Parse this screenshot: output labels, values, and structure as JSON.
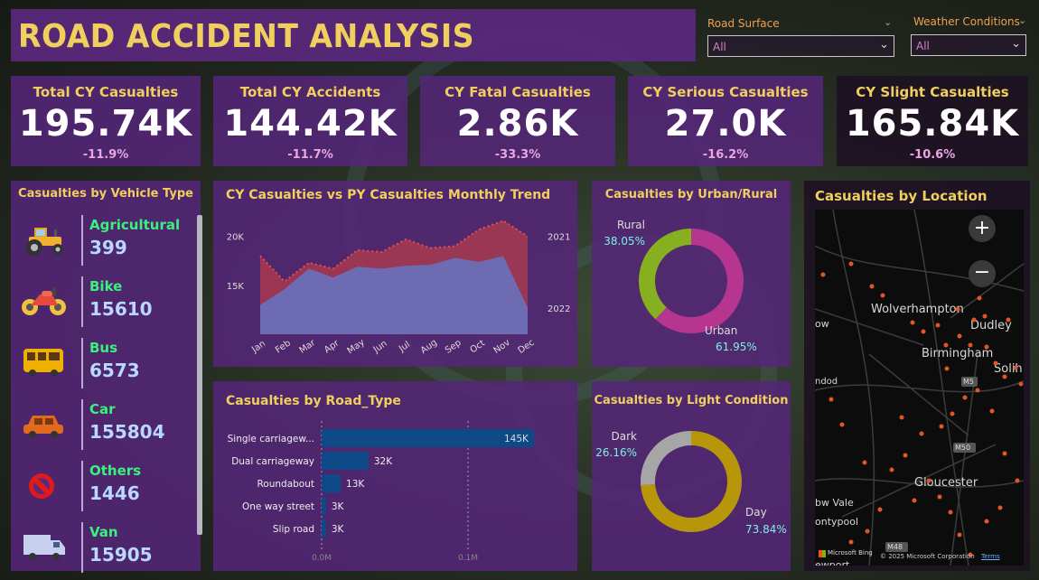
{
  "title": "ROAD ACCIDENT ANALYSIS",
  "filters": {
    "road_surface": {
      "label": "Road Surface",
      "value": "All"
    },
    "weather": {
      "label": "Weather Conditions",
      "value": "All"
    }
  },
  "kpis": [
    {
      "title": "Total CY Casualties",
      "value": "195.74K",
      "delta": "-11.9%"
    },
    {
      "title": "Total CY Accidents",
      "value": "144.42K",
      "delta": "-11.7%"
    },
    {
      "title": "CY Fatal Casualties",
      "value": "2.86K",
      "delta": "-33.3%"
    },
    {
      "title": "CY Serious Casualties",
      "value": "27.0K",
      "delta": "-16.2%"
    },
    {
      "title": "CY Slight Casualties",
      "value": "165.84K",
      "delta": "-10.6%"
    }
  ],
  "colors": {
    "title": "#f0cf5e",
    "cy_area": "#6a6fb8",
    "py_area": "#b33c4c",
    "urban": "#b5358f",
    "rural": "#86b020",
    "day": "#b8960a",
    "dark": "#a6a6a6",
    "bar": "#0e4a88"
  },
  "chart_data": [
    {
      "type": "table",
      "title": "Casualties by Vehicle Type",
      "rows": [
        {
          "name": "Agricultural",
          "value": "399",
          "icon": "tractor-icon"
        },
        {
          "name": "Bike",
          "value": "15610",
          "icon": "motorbike-icon"
        },
        {
          "name": "Bus",
          "value": "6573",
          "icon": "bus-icon"
        },
        {
          "name": "Car",
          "value": "155804",
          "icon": "car-icon"
        },
        {
          "name": "Others",
          "value": "1446",
          "icon": "no-entry-icon"
        },
        {
          "name": "Van",
          "value": "15905",
          "icon": "van-icon"
        }
      ]
    },
    {
      "type": "area",
      "title": "CY Casualties vs PY Casualties Monthly Trend",
      "categories": [
        "Jan",
        "Feb",
        "Mar",
        "Apr",
        "May",
        "Jun",
        "Jul",
        "Aug",
        "Sep",
        "Oct",
        "Nov",
        "Dec"
      ],
      "yticks": [
        "20K",
        "15K"
      ],
      "ylim": [
        10000,
        22000
      ],
      "series": [
        {
          "name": "2021",
          "values": [
            18000,
            15400,
            17300,
            16700,
            18600,
            18400,
            19700,
            18800,
            19000,
            20700,
            21600,
            20000
          ]
        },
        {
          "name": "2022",
          "values": [
            13000,
            14600,
            16700,
            15800,
            16900,
            16700,
            17000,
            17100,
            17800,
            17400,
            18000,
            12700
          ]
        }
      ]
    },
    {
      "type": "pie",
      "title": "Casualties by Urban/Rural",
      "slices": [
        {
          "name": "Urban",
          "value": 61.95,
          "label": "61.95%"
        },
        {
          "name": "Rural",
          "value": 38.05,
          "label": "38.05%"
        }
      ]
    },
    {
      "type": "pie",
      "title": "Casualties by Light Condition",
      "slices": [
        {
          "name": "Day",
          "value": 73.84,
          "label": "73.84%"
        },
        {
          "name": "Dark",
          "value": 26.16,
          "label": "26.16%"
        }
      ]
    },
    {
      "type": "bar",
      "title": "Casualties by Road_Type",
      "categories": [
        "Single carriagew...",
        "Dual carriageway",
        "Roundabout",
        "One way street",
        "Slip road"
      ],
      "values": [
        145000,
        32000,
        13000,
        3000,
        3000
      ],
      "value_labels": [
        "145K",
        "32K",
        "13K",
        "3K",
        "3K"
      ],
      "xticks": [
        "0.0M",
        "0.1M"
      ],
      "xlim": [
        0,
        100000
      ]
    }
  ],
  "map": {
    "title": "Casualties by Location",
    "labels": [
      "Wolverhampton",
      "Dudley",
      "Birmingham",
      "Solih",
      "Gloucester",
      "bw Vale",
      "ontypool",
      "ewport",
      "ndod",
      "M5",
      "M50",
      "M48",
      "ow"
    ],
    "attribution": "© 2025 Microsoft Corporation",
    "terms": "Terms",
    "brand": "Microsoft Bing",
    "zoom_in": "+",
    "zoom_out": "−"
  }
}
